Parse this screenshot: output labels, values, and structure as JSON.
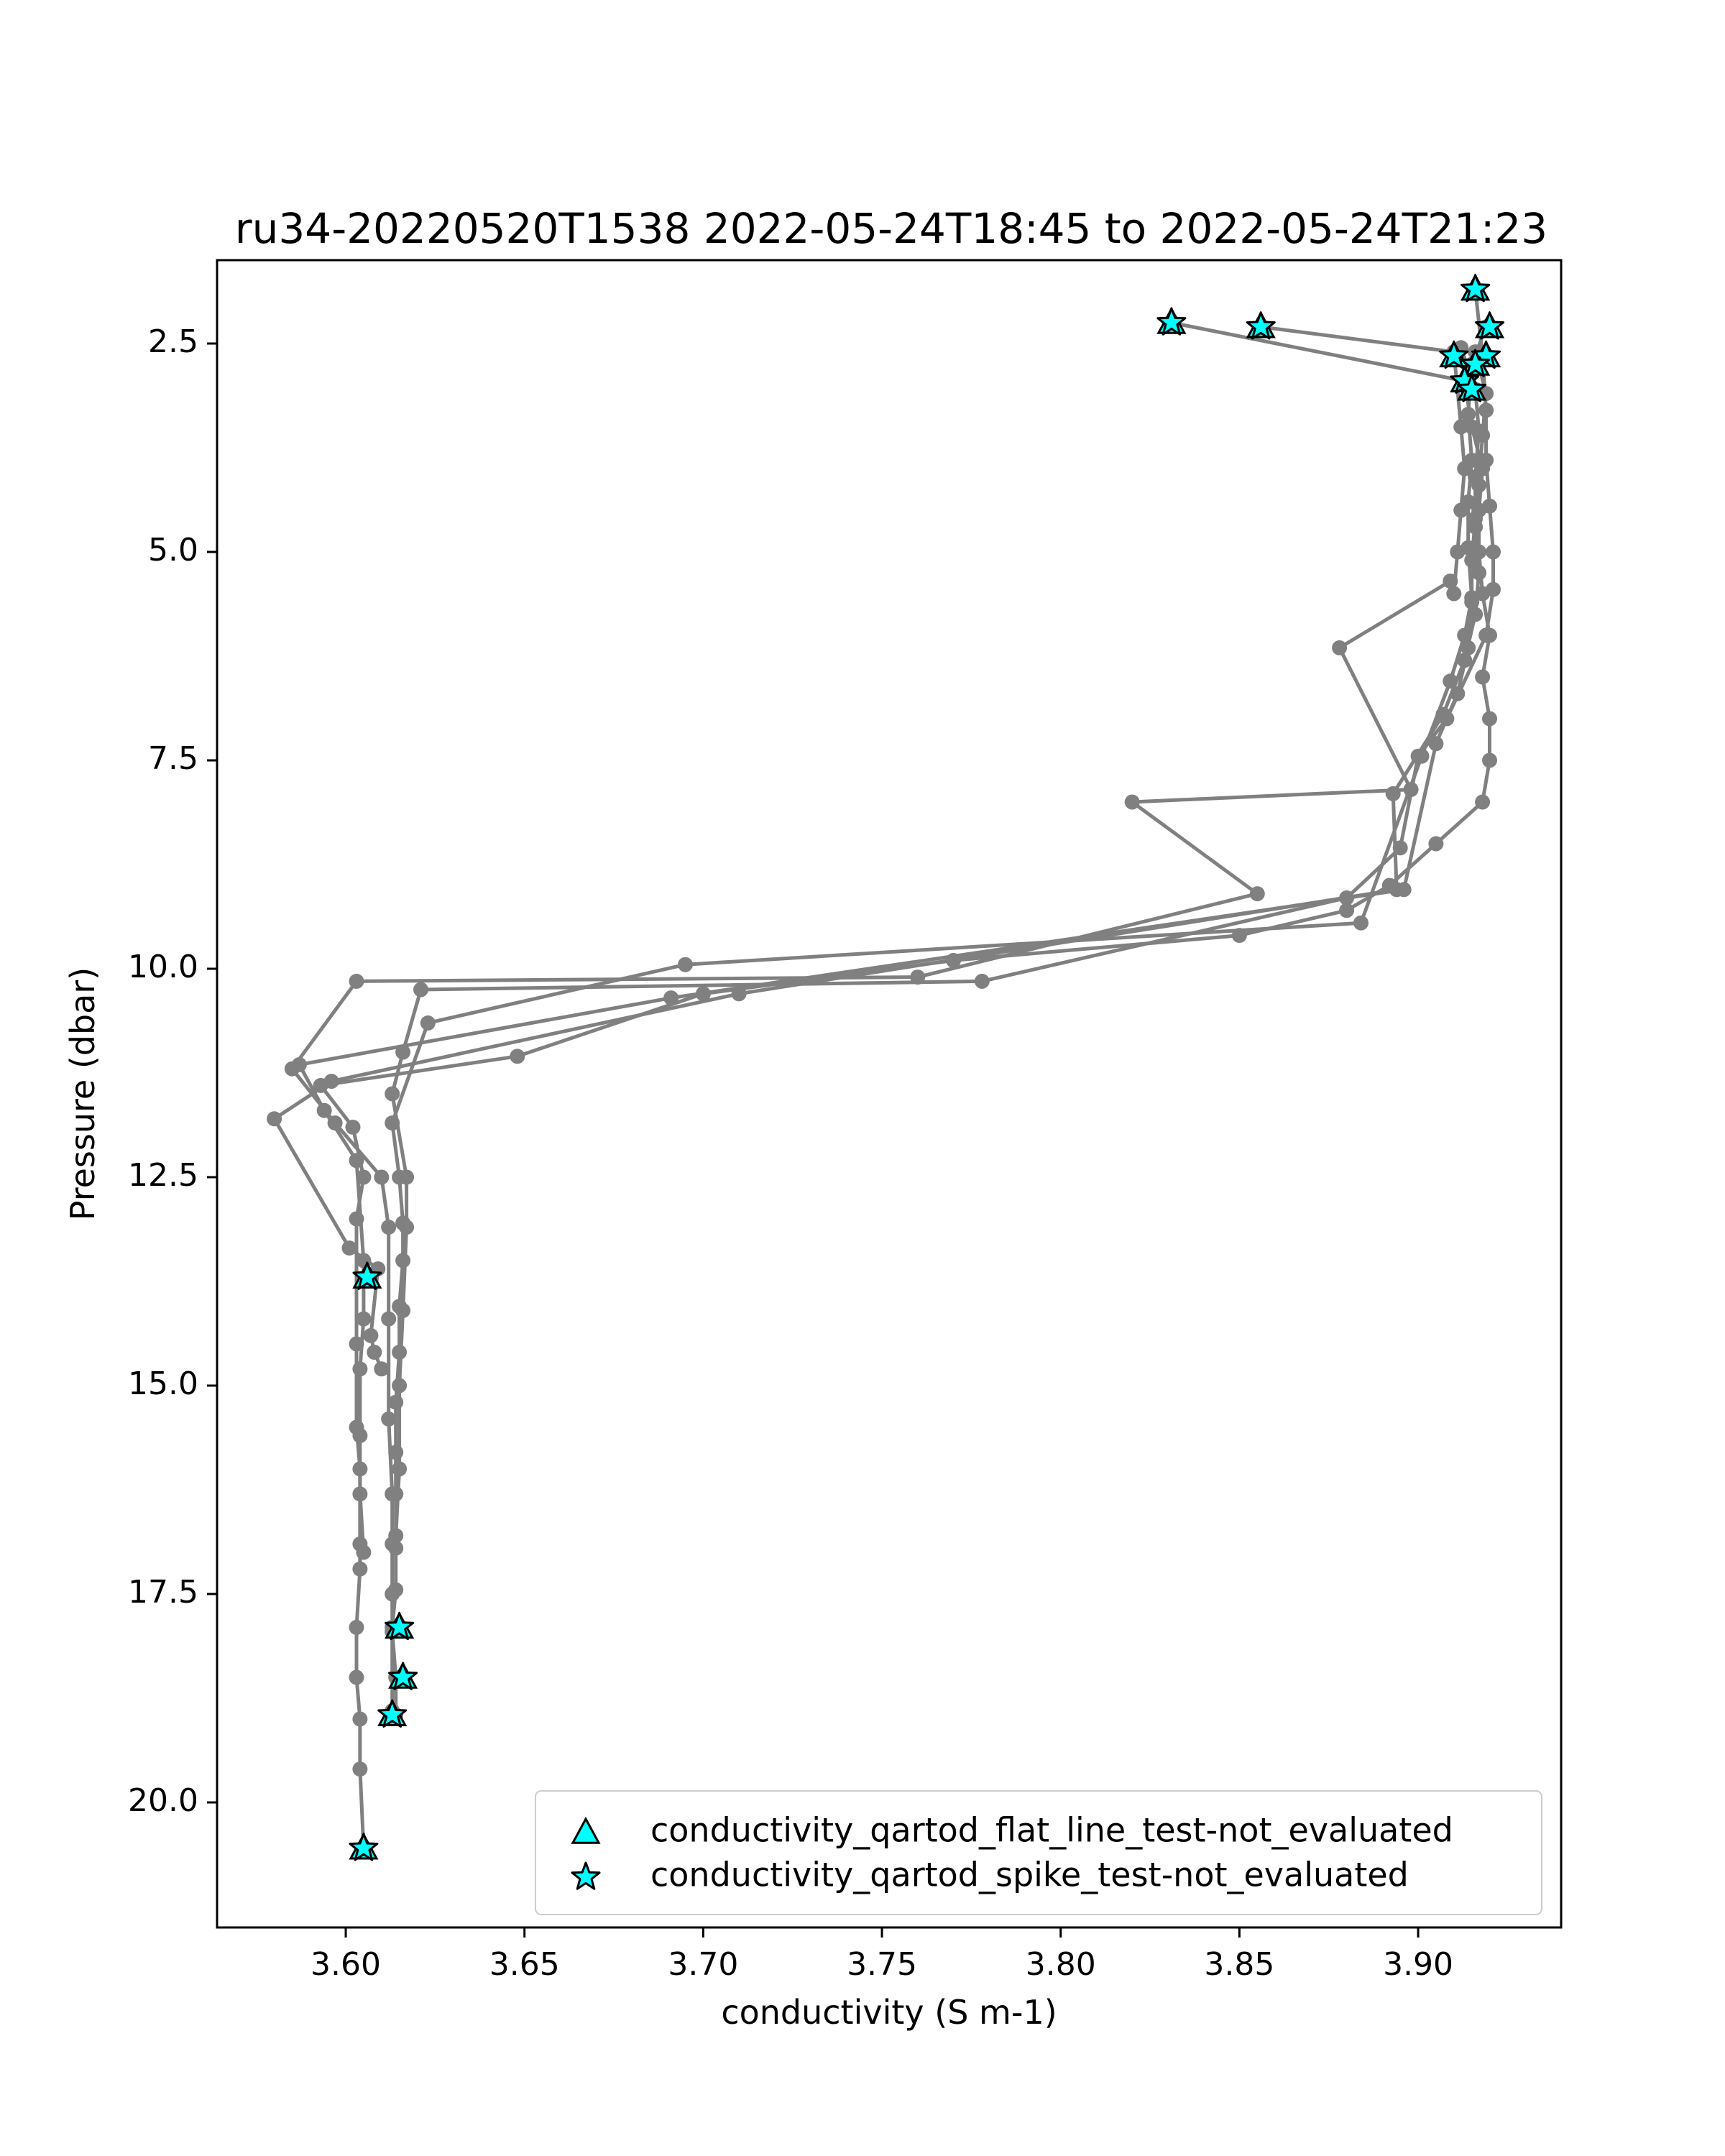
{
  "chart_data": {
    "type": "scatter",
    "title": "ru34-20220520T1538 2022-05-24T18:45 to 2022-05-24T21:23",
    "xlabel": "conductivity (S m-1)",
    "ylabel": "Pressure (dbar)",
    "xlim": [
      3.564,
      3.94
    ],
    "ylim": [
      21.5,
      1.5
    ],
    "y_inverted": true,
    "xticks": [
      3.6,
      3.65,
      3.7,
      3.75,
      3.8,
      3.85,
      3.9
    ],
    "xtick_labels": [
      "3.60",
      "3.65",
      "3.70",
      "3.75",
      "3.80",
      "3.85",
      "3.90"
    ],
    "yticks": [
      2.5,
      5.0,
      7.5,
      10.0,
      12.5,
      15.0,
      17.5,
      20.0
    ],
    "ytick_labels": [
      "2.5",
      "5.0",
      "7.5",
      "10.0",
      "12.5",
      "15.0",
      "17.5",
      "20.0"
    ],
    "grid": false,
    "legend_position": "lower-right",
    "line_color": "#808080",
    "marker_color": "#00ffff",
    "series": [
      {
        "name": "",
        "style": "line-dots",
        "x": [
          3.831,
          3.913,
          3.915,
          3.918,
          3.917,
          3.917,
          3.918,
          3.92,
          3.918,
          3.92,
          3.92,
          3.918,
          3.905,
          3.892,
          3.88,
          3.85,
          3.77,
          3.7,
          3.648,
          3.593,
          3.602,
          3.605,
          3.603,
          3.603,
          3.603,
          3.604,
          3.604,
          3.604,
          3.603,
          3.603,
          3.604,
          3.604,
          3.605
        ],
        "y": [
          2.25,
          2.95,
          3.5,
          4.0,
          4.5,
          5.0,
          5.5,
          6.0,
          6.5,
          7.0,
          7.5,
          8.0,
          8.5,
          9.0,
          9.3,
          9.6,
          9.9,
          10.3,
          11.05,
          11.4,
          11.9,
          12.5,
          13.0,
          14.5,
          15.5,
          16.0,
          16.9,
          17.2,
          17.9,
          18.5,
          19.0,
          19.6,
          20.55
        ]
      },
      {
        "name": "",
        "style": "line-dots",
        "x": [
          3.856,
          3.91,
          3.912,
          3.913,
          3.912,
          3.911,
          3.91,
          3.909,
          3.878,
          3.898,
          3.82,
          3.855,
          3.76,
          3.603,
          3.585,
          3.597,
          3.61,
          3.612,
          3.612,
          3.612,
          3.613,
          3.613,
          3.613,
          3.613,
          3.614,
          3.614
        ],
        "y": [
          2.3,
          2.6,
          3.5,
          4.0,
          4.5,
          5.0,
          5.5,
          5.35,
          6.15,
          7.85,
          8.0,
          9.1,
          10.1,
          10.15,
          11.2,
          11.85,
          12.5,
          13.1,
          14.2,
          15.4,
          16.3,
          16.9,
          17.5,
          17.95,
          18.5,
          18.95
        ]
      },
      {
        "name": "",
        "style": "line-dots",
        "x": [
          3.916,
          3.918,
          3.919,
          3.919,
          3.92,
          3.921,
          3.921,
          3.919,
          3.908,
          3.9,
          3.895,
          3.88,
          3.778,
          3.621,
          3.616,
          3.613,
          3.617,
          3.617,
          3.616,
          3.615,
          3.615,
          3.614
        ],
        "y": [
          1.85,
          2.65,
          3.3,
          3.9,
          4.45,
          5.0,
          5.45,
          6.0,
          7.0,
          7.45,
          8.55,
          9.15,
          10.15,
          10.25,
          11.0,
          11.5,
          12.5,
          13.1,
          14.1,
          15.0,
          16.0,
          16.8
        ]
      },
      {
        "name": "",
        "style": "line-dots",
        "x": [
          3.919,
          3.915,
          3.914,
          3.915,
          3.914,
          3.914,
          3.915,
          3.913,
          3.909,
          3.901,
          3.884,
          3.695,
          3.623,
          3.613,
          3.615,
          3.616,
          3.616,
          3.615,
          3.615,
          3.614,
          3.614,
          3.614,
          3.614,
          3.614,
          3.613,
          3.613
        ],
        "y": [
          2.3,
          2.75,
          3.35,
          3.9,
          4.4,
          4.95,
          5.55,
          6.0,
          6.55,
          7.45,
          9.45,
          9.95,
          10.65,
          11.85,
          12.5,
          13.05,
          13.5,
          14.05,
          14.6,
          15.2,
          15.8,
          16.3,
          16.95,
          17.45,
          17.9,
          18.9
        ]
      },
      {
        "name": "",
        "style": "line-dots",
        "x": [
          3.912,
          3.916,
          3.917,
          3.916,
          3.916,
          3.915,
          3.915,
          3.914,
          3.911,
          3.905,
          3.896,
          3.691,
          3.587,
          3.594,
          3.603,
          3.605,
          3.605,
          3.604,
          3.604,
          3.604,
          3.605
        ],
        "y": [
          2.55,
          3.05,
          3.55,
          4.1,
          4.6,
          5.1,
          5.6,
          6.15,
          6.7,
          7.3,
          9.05,
          10.35,
          11.15,
          11.7,
          12.3,
          13.5,
          14.2,
          14.8,
          15.6,
          16.3,
          17.0
        ]
      },
      {
        "name": "",
        "style": "line-dots",
        "x": [
          3.916,
          3.919,
          3.918,
          3.917,
          3.916,
          3.917,
          3.916,
          3.913,
          3.907,
          3.893,
          3.894,
          3.71,
          3.596,
          3.58,
          3.601,
          3.609,
          3.607,
          3.608,
          3.61
        ],
        "y": [
          2.6,
          3.1,
          3.6,
          4.2,
          4.7,
          5.25,
          5.75,
          6.3,
          6.95,
          7.9,
          9.05,
          10.3,
          11.35,
          11.8,
          13.35,
          13.6,
          14.4,
          14.6,
          14.8
        ]
      }
    ],
    "flag_markers": [
      {
        "name": "conductivity_qartod_flat_line_test-not_evaluated",
        "marker": "triangle",
        "x": [
          3.831,
          3.856,
          3.916,
          3.92,
          3.919,
          3.91,
          3.916,
          3.913,
          3.915,
          3.606,
          3.615,
          3.616,
          3.613,
          3.605
        ],
        "y": [
          2.25,
          2.3,
          1.85,
          2.3,
          2.65,
          2.65,
          2.75,
          2.95,
          3.05,
          13.7,
          17.9,
          18.5,
          18.95,
          20.55
        ]
      },
      {
        "name": "conductivity_qartod_spike_test-not_evaluated",
        "marker": "star",
        "x": [
          3.831,
          3.856,
          3.916,
          3.92,
          3.919,
          3.91,
          3.916,
          3.913,
          3.915,
          3.606,
          3.615,
          3.616,
          3.613,
          3.605
        ],
        "y": [
          2.25,
          2.3,
          1.85,
          2.3,
          2.65,
          2.65,
          2.75,
          2.95,
          3.05,
          13.7,
          17.9,
          18.5,
          18.95,
          20.55
        ]
      }
    ]
  }
}
